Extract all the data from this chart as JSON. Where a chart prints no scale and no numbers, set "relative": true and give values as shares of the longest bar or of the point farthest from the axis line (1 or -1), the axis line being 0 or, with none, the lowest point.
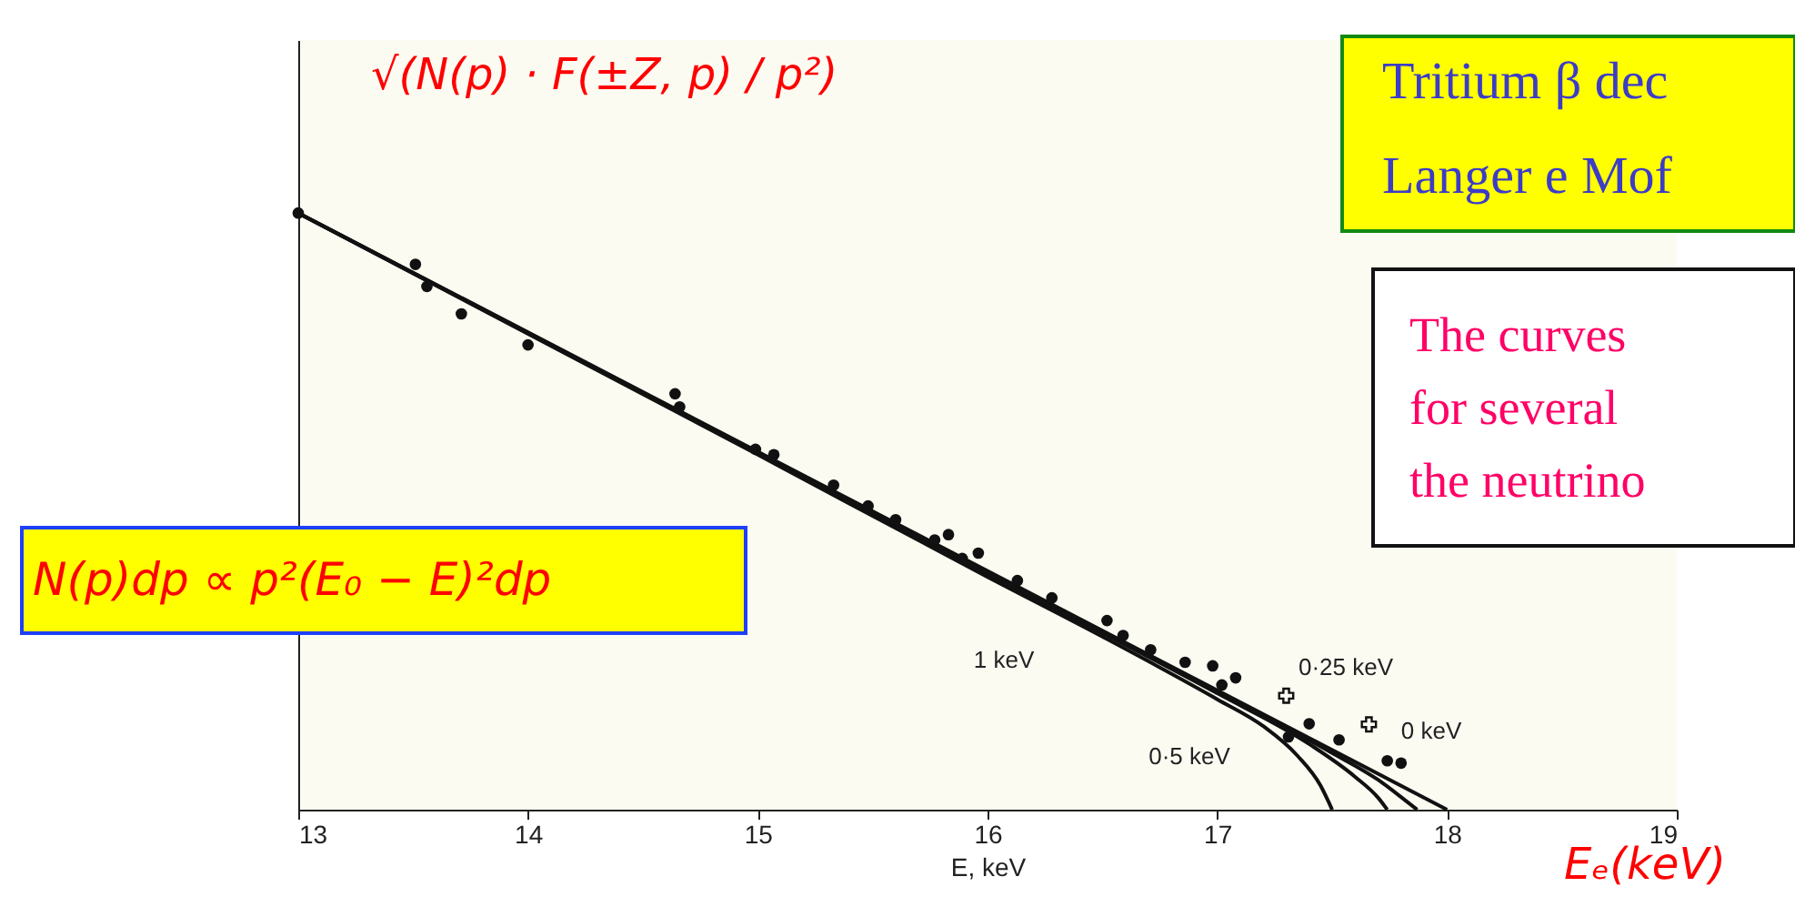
{
  "chart_data": {
    "type": "scatter",
    "relative": true,
    "xlabel": "E, keV",
    "ylabel": "√(N(p) · F(±Z, p) / p²)",
    "xlim": [
      13,
      19
    ],
    "xticks": [
      13,
      14,
      15,
      16,
      17,
      18,
      19
    ],
    "grid": false,
    "series": [
      {
        "color": "#111111",
        "marker": "circle",
        "x": [
          13.0,
          13.51,
          13.56,
          13.71,
          14.0,
          14.64,
          14.66,
          14.99,
          15.07,
          15.33,
          15.48,
          15.6,
          15.77,
          15.83,
          15.89,
          15.96,
          16.13,
          16.28,
          16.52,
          16.59,
          16.71,
          16.86,
          16.98,
          17.02,
          17.08,
          17.31,
          17.4,
          17.53,
          17.74,
          17.8
        ],
        "values": [
          1.0,
          0.914,
          0.877,
          0.831,
          0.779,
          0.697,
          0.675,
          0.604,
          0.595,
          0.544,
          0.509,
          0.486,
          0.452,
          0.461,
          0.421,
          0.43,
          0.384,
          0.355,
          0.317,
          0.292,
          0.268,
          0.247,
          0.241,
          0.209,
          0.221,
          0.122,
          0.144,
          0.117,
          0.082,
          0.078
        ]
      },
      {
        "color": "#111111",
        "marker": "cross",
        "x": [
          17.3,
          17.66
        ],
        "values": [
          0.191,
          0.143
        ]
      },
      {
        "type": "line",
        "color": "#111111",
        "x": [
          13.0,
          15.0,
          16.0,
          16.5,
          17.0,
          17.2,
          17.35,
          17.45,
          17.5
        ],
        "values": [
          1.0,
          0.595,
          0.39,
          0.29,
          0.185,
          0.14,
          0.09,
          0.04,
          0.0
        ]
      },
      {
        "type": "line",
        "color": "#111111",
        "x": [
          13.0,
          16.0,
          17.0,
          17.4,
          17.6,
          17.7,
          17.74
        ],
        "values": [
          1.0,
          0.395,
          0.195,
          0.11,
          0.055,
          0.02,
          0.0
        ]
      },
      {
        "type": "line",
        "color": "#111111",
        "x": [
          13.0,
          16.0,
          17.0,
          17.5,
          17.7,
          17.82,
          17.87
        ],
        "values": [
          1.0,
          0.398,
          0.198,
          0.095,
          0.05,
          0.015,
          0.0
        ]
      },
      {
        "type": "line",
        "color": "#111111",
        "x": [
          13.0,
          18.0
        ],
        "values": [
          1.0,
          0.0
        ]
      }
    ],
    "annotations": [
      "N(p)dp ∝ p²(E₀ − E)²dp",
      "Tritium β dec",
      "Langer e Mof",
      "The curves",
      "for several",
      "the neutrino",
      "Eₑ(keV)",
      "1 keV",
      "0·5 keV",
      "0·25 keV",
      "0 keV"
    ]
  }
}
